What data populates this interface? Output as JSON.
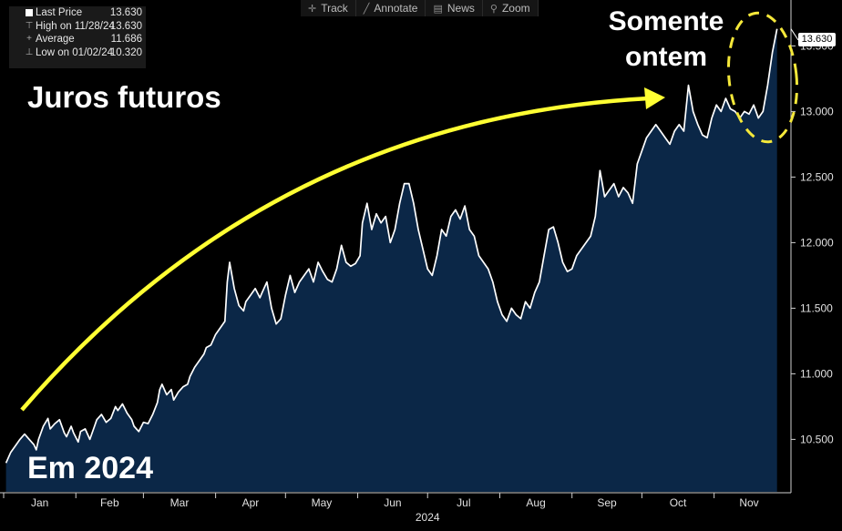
{
  "toolbar": {
    "items": [
      {
        "icon": "crosshair-icon",
        "glyph": "✛",
        "label": "Track"
      },
      {
        "icon": "pencil-icon",
        "glyph": "╱",
        "label": "Annotate"
      },
      {
        "icon": "news-icon",
        "glyph": "▤",
        "label": "News"
      },
      {
        "icon": "magnifier-icon",
        "glyph": "⚲",
        "label": "Zoom"
      }
    ]
  },
  "legend": {
    "last_price": {
      "label": "Last Price",
      "value": "13.630"
    },
    "high": {
      "label": "High on 11/28/24",
      "value": "13.630"
    },
    "average": {
      "label": "Average",
      "value": "11.686"
    },
    "low": {
      "label": "Low on 01/02/24",
      "value": "10.320"
    }
  },
  "annotations": {
    "juros": "Juros futuros",
    "somente_line1": "Somente",
    "somente_line2": "ontem",
    "em2024": "Em 2024"
  },
  "last_value_label": "13.630",
  "colors": {
    "background": "#000000",
    "area_fill": "#0b2747",
    "line": "#ffffff",
    "arrow": "#ffff33",
    "highlight_ellipse": "#f5e83a",
    "axis_text": "#e0e0e0"
  },
  "chart_data": {
    "type": "area",
    "title": "",
    "xlabel": "2024",
    "ylabel": "",
    "x_ticks": [
      "Jan",
      "Feb",
      "Mar",
      "Apr",
      "May",
      "Jun",
      "Jul",
      "Aug",
      "Sep",
      "Oct",
      "Nov"
    ],
    "y_ticks": [
      "10.500",
      "11.000",
      "11.500",
      "12.000",
      "12.500",
      "13.000",
      "13.500"
    ],
    "ylim": [
      10.1,
      13.85
    ],
    "xlim": [
      "2024-01-01",
      "2024-12-04"
    ],
    "grid": false,
    "series": [
      {
        "points": [
          [
            "2024-01-02",
            10.32
          ],
          [
            "2024-01-04",
            10.4
          ],
          [
            "2024-01-06",
            10.45
          ],
          [
            "2024-01-08",
            10.5
          ],
          [
            "2024-01-10",
            10.54
          ],
          [
            "2024-01-12",
            10.5
          ],
          [
            "2024-01-14",
            10.46
          ],
          [
            "2024-01-15",
            10.42
          ],
          [
            "2024-01-16",
            10.5
          ],
          [
            "2024-01-18",
            10.6
          ],
          [
            "2024-01-20",
            10.66
          ],
          [
            "2024-01-21",
            10.58
          ],
          [
            "2024-01-23",
            10.62
          ],
          [
            "2024-01-25",
            10.65
          ],
          [
            "2024-01-27",
            10.55
          ],
          [
            "2024-01-28",
            10.52
          ],
          [
            "2024-01-30",
            10.6
          ],
          [
            "2024-01-31",
            10.55
          ],
          [
            "2024-02-02",
            10.48
          ],
          [
            "2024-02-03",
            10.56
          ],
          [
            "2024-02-05",
            10.58
          ],
          [
            "2024-02-07",
            10.5
          ],
          [
            "2024-02-09",
            10.6
          ],
          [
            "2024-02-10",
            10.65
          ],
          [
            "2024-02-12",
            10.69
          ],
          [
            "2024-02-14",
            10.63
          ],
          [
            "2024-02-16",
            10.66
          ],
          [
            "2024-02-18",
            10.75
          ],
          [
            "2024-02-19",
            10.72
          ],
          [
            "2024-02-21",
            10.77
          ],
          [
            "2024-02-23",
            10.7
          ],
          [
            "2024-02-25",
            10.65
          ],
          [
            "2024-02-26",
            10.6
          ],
          [
            "2024-02-28",
            10.56
          ],
          [
            "2024-03-01",
            10.63
          ],
          [
            "2024-03-03",
            10.62
          ],
          [
            "2024-03-05",
            10.69
          ],
          [
            "2024-03-07",
            10.78
          ],
          [
            "2024-03-08",
            10.88
          ],
          [
            "2024-03-09",
            10.92
          ],
          [
            "2024-03-11",
            10.84
          ],
          [
            "2024-03-13",
            10.88
          ],
          [
            "2024-03-14",
            10.8
          ],
          [
            "2024-03-16",
            10.86
          ],
          [
            "2024-03-18",
            10.9
          ],
          [
            "2024-03-20",
            10.92
          ],
          [
            "2024-03-21",
            10.98
          ],
          [
            "2024-03-23",
            11.05
          ],
          [
            "2024-03-25",
            11.1
          ],
          [
            "2024-03-27",
            11.15
          ],
          [
            "2024-03-28",
            11.2
          ],
          [
            "2024-03-30",
            11.22
          ],
          [
            "2024-04-01",
            11.3
          ],
          [
            "2024-04-03",
            11.35
          ],
          [
            "2024-04-05",
            11.4
          ],
          [
            "2024-04-06",
            11.7
          ],
          [
            "2024-04-07",
            11.85
          ],
          [
            "2024-04-09",
            11.65
          ],
          [
            "2024-04-11",
            11.52
          ],
          [
            "2024-04-13",
            11.48
          ],
          [
            "2024-04-14",
            11.55
          ],
          [
            "2024-04-16",
            11.6
          ],
          [
            "2024-04-18",
            11.65
          ],
          [
            "2024-04-20",
            11.58
          ],
          [
            "2024-04-21",
            11.62
          ],
          [
            "2024-04-23",
            11.7
          ],
          [
            "2024-04-25",
            11.5
          ],
          [
            "2024-04-27",
            11.38
          ],
          [
            "2024-04-29",
            11.42
          ],
          [
            "2024-05-01",
            11.6
          ],
          [
            "2024-05-03",
            11.75
          ],
          [
            "2024-05-05",
            11.62
          ],
          [
            "2024-05-07",
            11.7
          ],
          [
            "2024-05-09",
            11.75
          ],
          [
            "2024-05-11",
            11.8
          ],
          [
            "2024-05-13",
            11.7
          ],
          [
            "2024-05-15",
            11.85
          ],
          [
            "2024-05-17",
            11.78
          ],
          [
            "2024-05-19",
            11.72
          ],
          [
            "2024-05-21",
            11.7
          ],
          [
            "2024-05-23",
            11.8
          ],
          [
            "2024-05-25",
            11.98
          ],
          [
            "2024-05-27",
            11.85
          ],
          [
            "2024-05-29",
            11.82
          ],
          [
            "2024-05-31",
            11.84
          ],
          [
            "2024-06-02",
            11.9
          ],
          [
            "2024-06-03",
            12.15
          ],
          [
            "2024-06-05",
            12.3
          ],
          [
            "2024-06-07",
            12.1
          ],
          [
            "2024-06-09",
            12.22
          ],
          [
            "2024-06-11",
            12.15
          ],
          [
            "2024-06-13",
            12.2
          ],
          [
            "2024-06-15",
            12.0
          ],
          [
            "2024-06-17",
            12.1
          ],
          [
            "2024-06-19",
            12.3
          ],
          [
            "2024-06-21",
            12.45
          ],
          [
            "2024-06-23",
            12.45
          ],
          [
            "2024-06-25",
            12.3
          ],
          [
            "2024-06-27",
            12.1
          ],
          [
            "2024-06-29",
            11.95
          ],
          [
            "2024-07-01",
            11.8
          ],
          [
            "2024-07-03",
            11.75
          ],
          [
            "2024-07-05",
            11.9
          ],
          [
            "2024-07-07",
            12.1
          ],
          [
            "2024-07-09",
            12.05
          ],
          [
            "2024-07-11",
            12.2
          ],
          [
            "2024-07-13",
            12.25
          ],
          [
            "2024-07-15",
            12.18
          ],
          [
            "2024-07-17",
            12.28
          ],
          [
            "2024-07-19",
            12.1
          ],
          [
            "2024-07-21",
            12.05
          ],
          [
            "2024-07-23",
            11.9
          ],
          [
            "2024-07-25",
            11.85
          ],
          [
            "2024-07-27",
            11.8
          ],
          [
            "2024-07-29",
            11.7
          ],
          [
            "2024-07-31",
            11.55
          ],
          [
            "2024-08-02",
            11.45
          ],
          [
            "2024-08-04",
            11.4
          ],
          [
            "2024-08-06",
            11.5
          ],
          [
            "2024-08-08",
            11.45
          ],
          [
            "2024-08-10",
            11.42
          ],
          [
            "2024-08-12",
            11.55
          ],
          [
            "2024-08-14",
            11.5
          ],
          [
            "2024-08-16",
            11.62
          ],
          [
            "2024-08-18",
            11.7
          ],
          [
            "2024-08-20",
            11.9
          ],
          [
            "2024-08-22",
            12.1
          ],
          [
            "2024-08-24",
            12.12
          ],
          [
            "2024-08-26",
            12.0
          ],
          [
            "2024-08-28",
            11.85
          ],
          [
            "2024-08-30",
            11.78
          ],
          [
            "2024-09-01",
            11.8
          ],
          [
            "2024-09-03",
            11.9
          ],
          [
            "2024-09-05",
            11.95
          ],
          [
            "2024-09-07",
            12.0
          ],
          [
            "2024-09-09",
            12.05
          ],
          [
            "2024-09-11",
            12.2
          ],
          [
            "2024-09-13",
            12.55
          ],
          [
            "2024-09-15",
            12.35
          ],
          [
            "2024-09-17",
            12.4
          ],
          [
            "2024-09-19",
            12.45
          ],
          [
            "2024-09-21",
            12.35
          ],
          [
            "2024-09-23",
            12.42
          ],
          [
            "2024-09-25",
            12.38
          ],
          [
            "2024-09-27",
            12.3
          ],
          [
            "2024-09-29",
            12.6
          ],
          [
            "2024-10-01",
            12.7
          ],
          [
            "2024-10-03",
            12.8
          ],
          [
            "2024-10-05",
            12.85
          ],
          [
            "2024-10-07",
            12.9
          ],
          [
            "2024-10-09",
            12.85
          ],
          [
            "2024-10-11",
            12.8
          ],
          [
            "2024-10-13",
            12.75
          ],
          [
            "2024-10-15",
            12.85
          ],
          [
            "2024-10-17",
            12.9
          ],
          [
            "2024-10-19",
            12.85
          ],
          [
            "2024-10-21",
            13.2
          ],
          [
            "2024-10-23",
            13.0
          ],
          [
            "2024-10-25",
            12.9
          ],
          [
            "2024-10-27",
            12.82
          ],
          [
            "2024-10-29",
            12.8
          ],
          [
            "2024-10-31",
            12.95
          ],
          [
            "2024-11-02",
            13.05
          ],
          [
            "2024-11-04",
            13.0
          ],
          [
            "2024-11-06",
            13.1
          ],
          [
            "2024-11-08",
            13.02
          ],
          [
            "2024-11-10",
            13.0
          ],
          [
            "2024-11-12",
            12.95
          ],
          [
            "2024-11-14",
            13.0
          ],
          [
            "2024-11-16",
            12.98
          ],
          [
            "2024-11-18",
            13.05
          ],
          [
            "2024-11-20",
            12.95
          ],
          [
            "2024-11-22",
            13.0
          ],
          [
            "2024-11-24",
            13.2
          ],
          [
            "2024-11-26",
            13.45
          ],
          [
            "2024-11-28",
            13.63
          ]
        ]
      }
    ]
  }
}
